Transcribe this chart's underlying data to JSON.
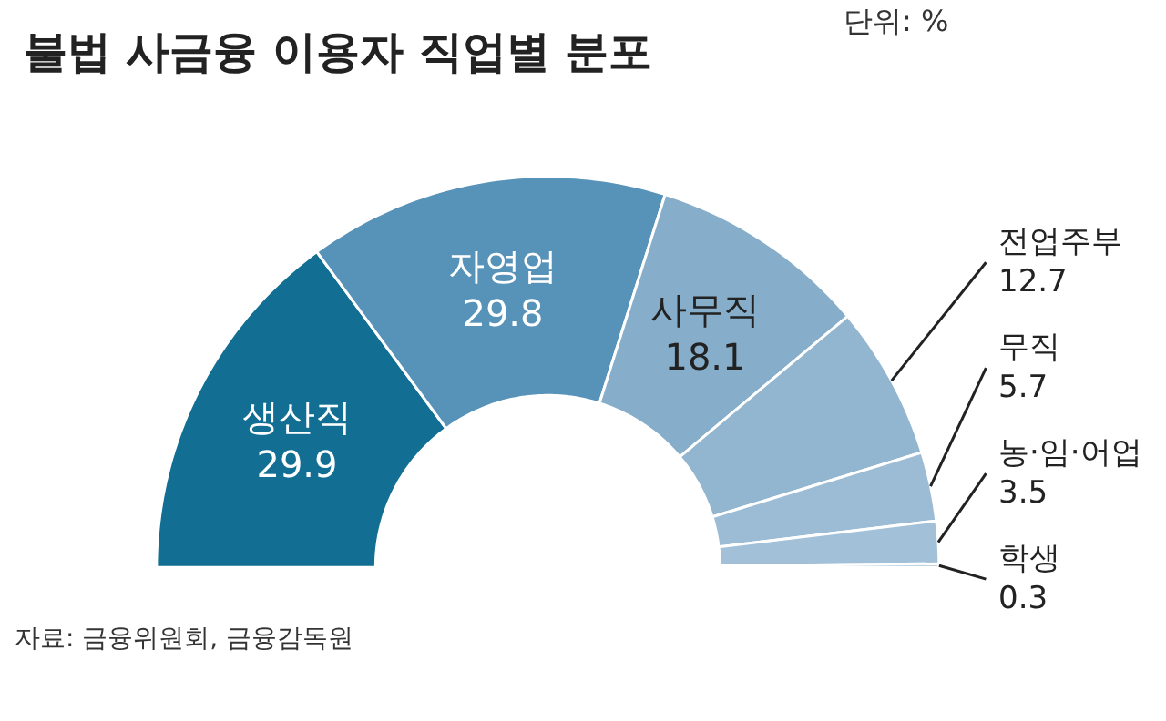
{
  "chart_data": {
    "type": "donut",
    "title": "불법 사금융 이용자 직업별 분포",
    "subtitle": "단위: %",
    "categories": [
      "생산직",
      "자영업",
      "사무직",
      "전업주부",
      "무직",
      "농·임·어업",
      "학생"
    ],
    "values": [
      29.9,
      29.8,
      18.1,
      12.7,
      5.7,
      3.5,
      0.3
    ],
    "colors": [
      "#126f93",
      "#5792b8",
      "#86adc9",
      "#93b6d0",
      "#9bbcd4",
      "#a2c1d8",
      "#a9c5da"
    ],
    "data_labels": true,
    "legend": false,
    "annotations": [
      "자료: 금융위원회, 금융감독원"
    ]
  }
}
